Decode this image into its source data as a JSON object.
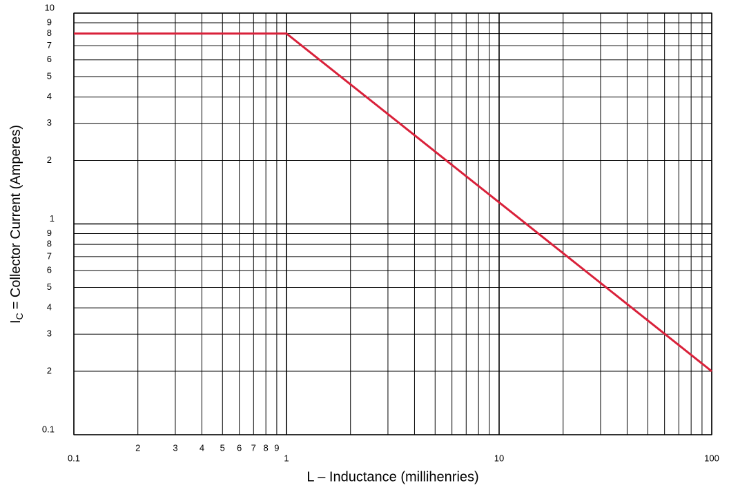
{
  "chart_data": {
    "type": "line",
    "xlabel": "L – Inductance (millihenries)",
    "ylabel": {
      "symbol": "I",
      "subscript": "C",
      "text": "= Collector Current (Amperes)"
    },
    "xscale": "log",
    "yscale": "log",
    "grid": true,
    "xlim": [
      0.1,
      100
    ],
    "ylim": [
      0.1,
      10
    ],
    "xticks": [
      0.1,
      {
        "value": 0.2,
        "label": "2"
      },
      {
        "value": 0.3,
        "label": "3"
      },
      {
        "value": 0.4,
        "label": "4"
      },
      {
        "value": 0.5,
        "label": "5"
      },
      {
        "value": 0.6,
        "label": "6"
      },
      {
        "value": 0.7,
        "label": "7"
      },
      {
        "value": 0.8,
        "label": "8"
      },
      {
        "value": 0.9,
        "label": "9"
      },
      1,
      10,
      100
    ],
    "xminor": [
      2,
      3,
      4,
      5,
      6,
      7,
      8,
      9,
      20,
      30,
      40,
      50,
      60,
      70,
      80,
      90
    ],
    "yticks": [
      10,
      9,
      8,
      7,
      6,
      5,
      4,
      3,
      2,
      1,
      {
        "value": 0.9,
        "label": "9"
      },
      {
        "value": 0.8,
        "label": "8"
      },
      {
        "value": 0.7,
        "label": "7"
      },
      {
        "value": 0.6,
        "label": "6"
      },
      {
        "value": 0.5,
        "label": "5"
      },
      {
        "value": 0.4,
        "label": "4"
      },
      {
        "value": 0.3,
        "label": "3"
      },
      {
        "value": 0.2,
        "label": "2"
      },
      0.1
    ],
    "series": [
      {
        "color": "#d9213a",
        "x": [
          0.1,
          1,
          100
        ],
        "y": [
          8,
          8,
          0.2
        ]
      }
    ]
  }
}
